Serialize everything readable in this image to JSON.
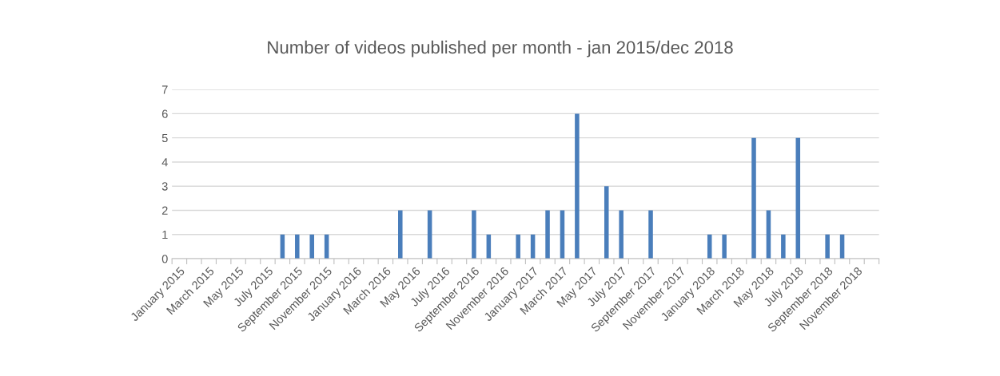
{
  "chart_data": {
    "type": "bar",
    "title": "Number of videos published per month - jan 2015/dec 2018",
    "categories": [
      "January 2015",
      null,
      "March 2015",
      null,
      "May 2015",
      null,
      "July 2015",
      null,
      "September 2015",
      null,
      "November 2015",
      null,
      "January 2016",
      null,
      "March 2016",
      null,
      "May 2016",
      null,
      "July 2016",
      null,
      "September 2016",
      null,
      "November 2016",
      null,
      "January 2017",
      null,
      "March 2017",
      null,
      "May 2017",
      null,
      "July 2017",
      null,
      "September 2017",
      null,
      "November 2017",
      null,
      "January 2018",
      null,
      "March 2018",
      null,
      "May 2018",
      null,
      "July 2018",
      null,
      "September 2018",
      null,
      "November 2018",
      null
    ],
    "values": [
      0,
      0,
      0,
      0,
      0,
      0,
      0,
      1,
      1,
      1,
      1,
      0,
      0,
      0,
      0,
      2,
      0,
      2,
      0,
      0,
      2,
      1,
      0,
      1,
      1,
      2,
      2,
      6,
      0,
      3,
      2,
      0,
      2,
      0,
      0,
      0,
      1,
      1,
      0,
      5,
      2,
      1,
      5,
      0,
      1,
      1,
      0,
      0
    ],
    "color": "#4a7ebb",
    "ylim": [
      0,
      7
    ],
    "yticks": [
      0,
      1,
      2,
      3,
      4,
      5,
      6,
      7
    ],
    "grid": "y"
  }
}
